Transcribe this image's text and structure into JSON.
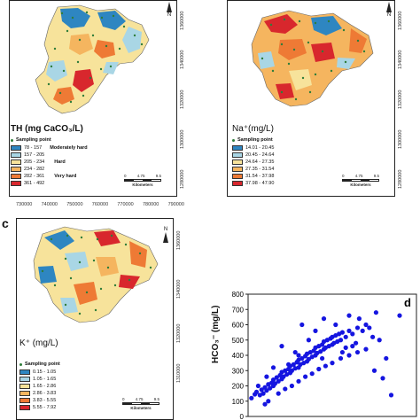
{
  "panel_a": {
    "title": "TH (mg CaCO₃/L)",
    "legend_point": "Sampling point",
    "classes": [
      {
        "range": "78 - 157",
        "color": "#2e86c1",
        "group": "Moderately hard"
      },
      {
        "range": "157 - 205",
        "color": "#a9d6e5",
        "group": ""
      },
      {
        "range": "205 - 234",
        "color": "#f7e39b",
        "group": "Hard"
      },
      {
        "range": "234 - 282",
        "color": "#f5b55f",
        "group": ""
      },
      {
        "range": "282 - 361",
        "color": "#ee7a35",
        "group": "Very hard"
      },
      {
        "range": "361 - 492",
        "color": "#d8272d",
        "group": ""
      }
    ],
    "y_ticks": [
      "1360000",
      "1340000",
      "1320000",
      "1300000",
      "1280000"
    ],
    "x_ticks": [
      "730000",
      "740000",
      "750000",
      "760000",
      "770000",
      "780000",
      "790000"
    ],
    "scale_labels": [
      "0",
      "4.75",
      "9.5"
    ],
    "scale_unit": "Kilometers",
    "north": "N"
  },
  "panel_b": {
    "title": "Na⁺(mg/L)",
    "legend_point": "Sampling point",
    "classes": [
      {
        "range": "14.01 - 20.45",
        "color": "#2e86c1"
      },
      {
        "range": "20.45 - 24.64",
        "color": "#a9d6e5"
      },
      {
        "range": "24.64 - 27.35",
        "color": "#f7e39b"
      },
      {
        "range": "27.35 - 31.54",
        "color": "#f5b55f"
      },
      {
        "range": "31.54 - 37.98",
        "color": "#ee7a35"
      },
      {
        "range": "37.98 - 47.90",
        "color": "#d8272d"
      }
    ],
    "y_ticks": [
      "1360000",
      "1340000",
      "1320000",
      "1300000",
      "1280000"
    ],
    "scale_labels": [
      "0",
      "4.75",
      "9.5"
    ],
    "scale_unit": "Kilometers",
    "north": "N"
  },
  "panel_c": {
    "letter": "c",
    "title": "K⁺ (mg/L)",
    "legend_point": "Sampling point",
    "classes": [
      {
        "range": "0.15 - 1.05",
        "color": "#2e86c1"
      },
      {
        "range": "1.05 - 1.65",
        "color": "#a9d6e5"
      },
      {
        "range": "1.65 - 2.86",
        "color": "#f7e39b"
      },
      {
        "range": "2.86 - 3.83",
        "color": "#f5b55f"
      },
      {
        "range": "3.83 - 5.55",
        "color": "#ee7a35"
      },
      {
        "range": "5.55 - 7.92",
        "color": "#d8272d"
      }
    ],
    "y_ticks": [
      "1360000",
      "1340000",
      "1320000",
      "1310000"
    ],
    "scale_labels": [
      "0",
      "4.75",
      "9.5"
    ],
    "scale_unit": "Kilometers",
    "north": "N"
  },
  "panel_d": {
    "letter": "d",
    "ylabel": "HCO₃⁻ (mg/L)"
  },
  "chart_data": {
    "type": "scatter",
    "title": "",
    "xlabel": "",
    "ylabel": "HCO₃⁻ (mg/L)",
    "ylim": [
      0,
      800
    ],
    "yticks": [
      0,
      100,
      200,
      300,
      400,
      500,
      600,
      700,
      800
    ],
    "xlim": [
      0,
      10
    ],
    "grid": false,
    "point_color": "#1515e0",
    "series": [
      {
        "points": [
          [
            0.2,
            120
          ],
          [
            0.4,
            145
          ],
          [
            0.5,
            160
          ],
          [
            0.7,
            140
          ],
          [
            0.8,
            175
          ],
          [
            0.9,
            150
          ],
          [
            1.0,
            190
          ],
          [
            1.1,
            170
          ],
          [
            1.2,
            210
          ],
          [
            1.3,
            185
          ],
          [
            1.4,
            220
          ],
          [
            1.5,
            200
          ],
          [
            1.5,
            240
          ],
          [
            1.6,
            215
          ],
          [
            1.7,
            255
          ],
          [
            1.8,
            230
          ],
          [
            1.9,
            270
          ],
          [
            2.0,
            245
          ],
          [
            2.0,
            290
          ],
          [
            2.1,
            260
          ],
          [
            2.2,
            300
          ],
          [
            2.3,
            275
          ],
          [
            2.4,
            310
          ],
          [
            2.5,
            285
          ],
          [
            2.5,
            330
          ],
          [
            2.6,
            300
          ],
          [
            2.7,
            340
          ],
          [
            2.8,
            315
          ],
          [
            2.9,
            355
          ],
          [
            3.0,
            320
          ],
          [
            3.0,
            370
          ],
          [
            3.1,
            340
          ],
          [
            3.2,
            380
          ],
          [
            3.3,
            350
          ],
          [
            3.4,
            395
          ],
          [
            3.5,
            360
          ],
          [
            3.5,
            410
          ],
          [
            3.6,
            375
          ],
          [
            3.7,
            420
          ],
          [
            3.8,
            390
          ],
          [
            3.9,
            430
          ],
          [
            4.0,
            400
          ],
          [
            4.0,
            450
          ],
          [
            4.1,
            415
          ],
          [
            4.2,
            460
          ],
          [
            4.3,
            425
          ],
          [
            4.4,
            470
          ],
          [
            4.5,
            440
          ],
          [
            4.5,
            490
          ],
          [
            4.6,
            450
          ],
          [
            4.7,
            500
          ],
          [
            4.8,
            460
          ],
          [
            4.9,
            510
          ],
          [
            5.0,
            470
          ],
          [
            5.0,
            520
          ],
          [
            5.1,
            480
          ],
          [
            5.2,
            530
          ],
          [
            5.3,
            490
          ],
          [
            5.4,
            540
          ],
          [
            5.5,
            500
          ],
          [
            5.6,
            550
          ],
          [
            5.8,
            520
          ],
          [
            6.0,
            560
          ],
          [
            6.2,
            540
          ],
          [
            6.5,
            580
          ],
          [
            6.8,
            560
          ],
          [
            7.0,
            600
          ],
          [
            7.2,
            580
          ],
          [
            1.0,
            80
          ],
          [
            1.2,
            100
          ],
          [
            1.8,
            150
          ],
          [
            2.2,
            180
          ],
          [
            2.6,
            200
          ],
          [
            3.0,
            230
          ],
          [
            3.4,
            260
          ],
          [
            3.8,
            280
          ],
          [
            4.2,
            310
          ],
          [
            4.6,
            330
          ],
          [
            5.0,
            350
          ],
          [
            5.5,
            380
          ],
          [
            6.0,
            400
          ],
          [
            6.5,
            420
          ],
          [
            7.0,
            440
          ],
          [
            7.5,
            300
          ],
          [
            8.0,
            250
          ],
          [
            8.5,
            140
          ],
          [
            2.0,
            460
          ],
          [
            3.2,
            600
          ],
          [
            4.5,
            640
          ],
          [
            6.0,
            660
          ],
          [
            6.6,
            640
          ],
          [
            7.6,
            680
          ],
          [
            9.0,
            660
          ],
          [
            5.8,
            450
          ],
          [
            6.4,
            480
          ],
          [
            7.8,
            500
          ],
          [
            8.2,
            380
          ],
          [
            1.5,
            320
          ],
          [
            2.8,
            420
          ],
          [
            3.6,
            500
          ],
          [
            4.0,
            560
          ],
          [
            5.2,
            600
          ],
          [
            0.6,
            200
          ],
          [
            1.1,
            260
          ],
          [
            2.4,
            340
          ],
          [
            3.0,
            400
          ],
          [
            4.4,
            380
          ],
          [
            5.6,
            420
          ],
          [
            6.2,
            460
          ],
          [
            7.4,
            520
          ]
        ]
      }
    ]
  }
}
